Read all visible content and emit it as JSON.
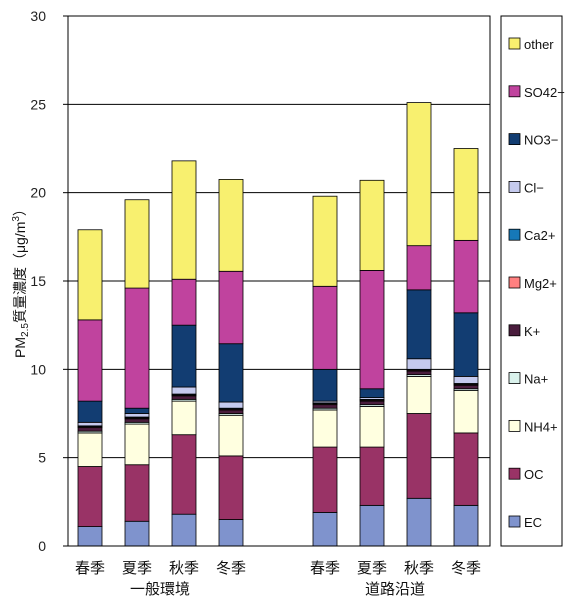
{
  "chart_data": {
    "type": "bar",
    "stacked": true,
    "ylabel": "PM2.5質量濃度（μg/m3）",
    "ylabel_parts": {
      "main": "PM",
      "sub": "2.5",
      "middle": "質量濃度（μg/m",
      "sup": "3",
      "end": "）"
    },
    "ylim": [
      0,
      30
    ],
    "yticks": [
      0,
      5,
      10,
      15,
      20,
      25,
      30
    ],
    "grid": true,
    "legend_position": "right",
    "groups": [
      {
        "label": "一般環境",
        "categories": [
          "春季",
          "夏季",
          "秋季",
          "冬季"
        ]
      },
      {
        "label": "道路沿道",
        "categories": [
          "春季",
          "夏季",
          "秋季",
          "冬季"
        ]
      }
    ],
    "categories": [
      "春季",
      "夏季",
      "秋季",
      "冬季",
      "春季",
      "夏季",
      "秋季",
      "冬季"
    ],
    "series": [
      {
        "name": "EC",
        "color": "#7f93cd",
        "values": [
          1.1,
          1.4,
          1.8,
          1.5,
          1.9,
          2.3,
          2.7,
          2.3
        ]
      },
      {
        "name": "OC",
        "color": "#993366",
        "values": [
          3.4,
          3.2,
          4.5,
          3.6,
          3.7,
          3.3,
          4.8,
          4.1
        ]
      },
      {
        "name": "NH4+",
        "color": "#ffffe0",
        "values": [
          1.9,
          2.3,
          1.9,
          2.3,
          2.1,
          2.3,
          2.1,
          2.4
        ]
      },
      {
        "name": "Na+",
        "color": "#daf2ec",
        "values": [
          0.1,
          0.1,
          0.1,
          0.1,
          0.1,
          0.1,
          0.1,
          0.1
        ]
      },
      {
        "name": "K+",
        "color": "#4a1d3d",
        "values": [
          0.2,
          0.2,
          0.2,
          0.2,
          0.2,
          0.2,
          0.2,
          0.2
        ]
      },
      {
        "name": "Mg2+",
        "color": "#ff8080",
        "values": [
          0.05,
          0.05,
          0.05,
          0.05,
          0.05,
          0.05,
          0.05,
          0.05
        ]
      },
      {
        "name": "Ca2+",
        "color": "#1678b8",
        "values": [
          0.05,
          0.05,
          0.05,
          0.05,
          0.05,
          0.05,
          0.05,
          0.05
        ]
      },
      {
        "name": "Cl−",
        "color": "#c5caee",
        "values": [
          0.2,
          0.2,
          0.4,
          0.35,
          0.1,
          0.1,
          0.6,
          0.4
        ]
      },
      {
        "name": "NO3−",
        "color": "#123d72",
        "values": [
          1.2,
          0.3,
          3.5,
          3.3,
          1.8,
          0.5,
          3.9,
          3.6
        ]
      },
      {
        "name": "SO42−",
        "color": "#c0439e",
        "values": [
          4.6,
          6.8,
          2.6,
          4.1,
          4.7,
          6.7,
          2.5,
          4.1
        ]
      },
      {
        "name": "other",
        "color": "#f8f06f",
        "values": [
          5.1,
          5.0,
          6.7,
          5.2,
          5.1,
          5.1,
          8.1,
          5.2
        ]
      }
    ]
  }
}
